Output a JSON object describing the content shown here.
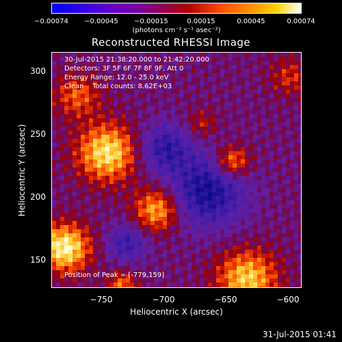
{
  "colorbar": {
    "ticks": [
      "−0.00074",
      "−0.00045",
      "−0.00015",
      "0.00015",
      "0.00045",
      "0.00074"
    ],
    "units": "(photons cm⁻² s⁻¹ asec⁻²)",
    "colors": [
      "#0000ff",
      "#6a00c8",
      "#7a00a0",
      "#b00000",
      "#ff5000",
      "#ff9000",
      "#ffd000",
      "#ffffff"
    ]
  },
  "title": "Reconstructed RHESSI Image",
  "info": {
    "line1": "30-Jul-2015 21:38:20.000 to 21:42:20.000",
    "line2": "Detectors: 3F 5F 6F 7F 8F 9F, Att 0",
    "line3": "Energy Range: 12.0 - 25.0 keV",
    "line4": "Clean    Total counts: 8.62E+03"
  },
  "peak": "Position of Peak = [-779,159]",
  "axes": {
    "xlabel": "Heliocentric X (arcsec)",
    "ylabel": "Heliocentric Y (arcsec)",
    "xticks": [
      "−750",
      "−700",
      "−650",
      "−600"
    ],
    "yticks": [
      "300",
      "250",
      "200",
      "150"
    ]
  },
  "footer": {
    "timestamp": "31-Jul-2015 01:41"
  }
}
